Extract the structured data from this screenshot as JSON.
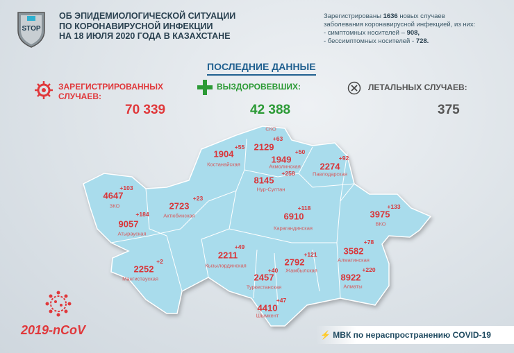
{
  "header": {
    "logo_text": "STOP",
    "title_lines": [
      "ОБ ЭПИДЕМИОЛОГИЧЕСКОЙ СИТУАЦИИ",
      "ПО КОРОНАВИРУСНОЙ ИНФЕКЦИИ",
      "НА 18 ИЮЛЯ 2020 ГОДА В КАЗАХСТАНЕ"
    ]
  },
  "info": {
    "l1a": "Зарегистрированы ",
    "l1b": "1636",
    "l1c": " новых случаев",
    "l2": "заболевания коронавирусной инфекцией, из них:",
    "l3a": "- симптомных носителей – ",
    "l3b": "908,",
    "l4a": "- бессимптомных носителей - ",
    "l4b": "728."
  },
  "latest_title": "ПОСЛЕДНИЕ ДАННЫЕ",
  "stats": [
    {
      "label1": "ЗАРЕГИСТРИРОВАННЫХ",
      "label2": "СЛУЧАЕВ:",
      "value": "70 339",
      "icon": "virus-icon",
      "color": "#e0383b"
    },
    {
      "label1": "ВЫЗДОРОВЕВШИХ:",
      "value": "42 388",
      "icon": "plus-icon",
      "color": "#2b9a35"
    },
    {
      "label1": "ЛЕТАЛЬНЫХ СЛУЧАЕВ:",
      "value": "375",
      "icon": "cross-circle-icon",
      "color": "#555555"
    }
  ],
  "regions": [
    {
      "name": "СКО",
      "total": "2129",
      "delta": "+63"
    },
    {
      "name": "Костанайская",
      "total": "1904",
      "delta": "+55"
    },
    {
      "name": "Акмолинская",
      "total": "1949",
      "delta": "+50"
    },
    {
      "name": "Павлодарская",
      "total": "2274",
      "delta": "+92"
    },
    {
      "name": "Нур-Султан",
      "total": "8145",
      "delta": "+258"
    },
    {
      "name": "ЗКО",
      "total": "4647",
      "delta": "+103"
    },
    {
      "name": "Актюбинская",
      "total": "2723",
      "delta": "+23"
    },
    {
      "name": "Атырауская",
      "total": "9057",
      "delta": "+184"
    },
    {
      "name": "Карагандинская",
      "total": "6910",
      "delta": "+118"
    },
    {
      "name": "ВКО",
      "total": "3975",
      "delta": "+133"
    },
    {
      "name": "Кызылординская",
      "total": "2211",
      "delta": "+49"
    },
    {
      "name": "Мангистауская",
      "total": "2252",
      "delta": "+2"
    },
    {
      "name": "Жамбылская",
      "total": "2792",
      "delta": "+121"
    },
    {
      "name": "Туркестанская",
      "total": "2457",
      "delta": "+40"
    },
    {
      "name": "Алматинская",
      "total": "3582",
      "delta": "+78"
    },
    {
      "name": "Алматы",
      "total": "8922",
      "delta": "+220"
    },
    {
      "name": "Шымкент",
      "total": "4410",
      "delta": "+47"
    }
  ],
  "colors": {
    "map": "#a9dcec",
    "accent": "#e0383b"
  },
  "footer": {
    "ncov": "2019-nCoV",
    "mvk": "МВК по нераспространению COVID-19"
  }
}
